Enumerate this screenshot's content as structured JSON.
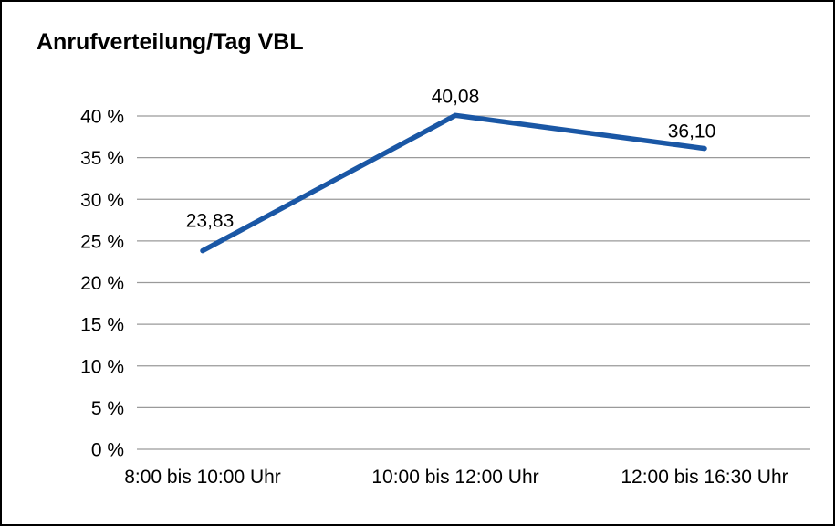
{
  "title": "Anrufverteilung/Tag VBL",
  "chart_data": {
    "type": "line",
    "title": "Anrufverteilung/Tag VBL",
    "categories": [
      "8:00 bis 10:00 Uhr",
      "10:00 bis 12:00 Uhr",
      "12:00 bis 16:30 Uhr"
    ],
    "values": [
      23.83,
      40.08,
      36.1
    ],
    "data_labels": [
      "23,83",
      "40,08",
      "36,10"
    ],
    "ylim": [
      0,
      40
    ],
    "ytick_step": 5,
    "ytick_labels": [
      "0 %",
      "5 %",
      "10 %",
      "15 %",
      "20 %",
      "25 %",
      "30 %",
      "35 %",
      "40 %"
    ],
    "xlabel": "",
    "ylabel": "",
    "grid": true,
    "legend": false
  },
  "colors": {
    "line": "#1a57a5",
    "grid": "#9a9a9a",
    "text": "#000000",
    "frame_border": "#000000",
    "background": "#ffffff"
  }
}
